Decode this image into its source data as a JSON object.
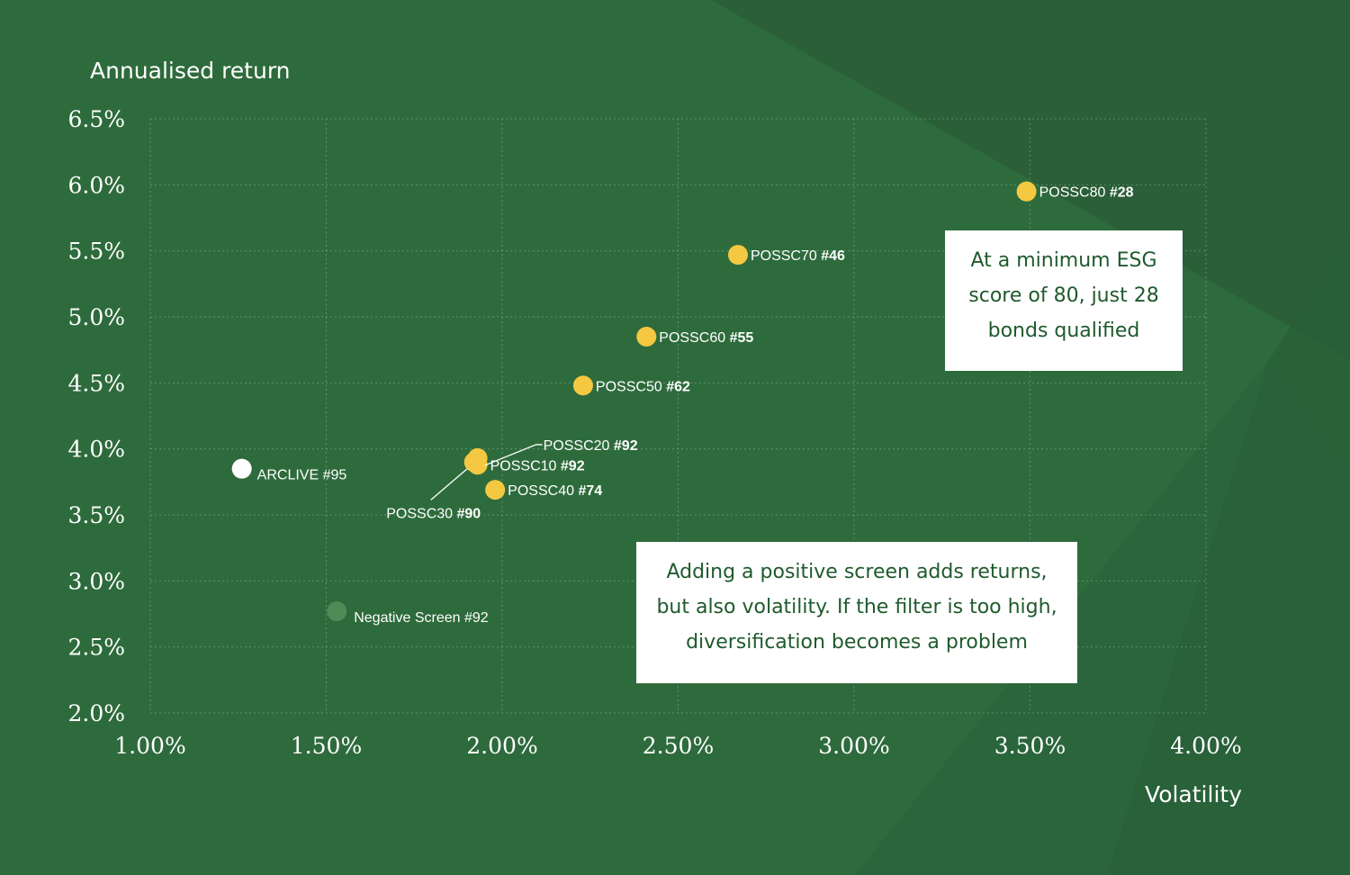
{
  "chart_data": {
    "type": "scatter",
    "title": "",
    "xlabel": "Volatility",
    "ylabel": "Annualised return",
    "xlim": [
      1.0,
      4.0
    ],
    "ylim": [
      2.0,
      6.5
    ],
    "x_ticks": [
      "1.00%",
      "1.50%",
      "2.00%",
      "2.50%",
      "3.00%",
      "3.50%",
      "4.00%"
    ],
    "x_tick_values": [
      1.0,
      1.5,
      2.0,
      2.5,
      3.0,
      3.5,
      4.0
    ],
    "y_ticks": [
      "2.0%",
      "2.5%",
      "3.0%",
      "3.5%",
      "4.0%",
      "4.5%",
      "5.0%",
      "5.5%",
      "6.0%",
      "6.5%"
    ],
    "y_tick_values": [
      2.0,
      2.5,
      3.0,
      3.5,
      4.0,
      4.5,
      5.0,
      5.5,
      6.0,
      6.5
    ],
    "grid": true,
    "points": [
      {
        "name": "ARCLIVE",
        "rank": "#95",
        "x": 1.26,
        "y": 3.85,
        "color": "#ffffff",
        "style": "large-white"
      },
      {
        "name": "Negative Screen",
        "rank": "#92",
        "x": 1.53,
        "y": 2.77,
        "color": "#4f8a57",
        "style": "faded"
      },
      {
        "name": "POSSC10",
        "rank": "#92",
        "x": 1.93,
        "y": 3.88,
        "color": "#f5c842",
        "style": "yellow"
      },
      {
        "name": "POSSC20",
        "rank": "#92",
        "x": 1.93,
        "y": 3.93,
        "color": "#f5c842",
        "style": "yellow-leader-up"
      },
      {
        "name": "POSSC30",
        "rank": "#90",
        "x": 1.92,
        "y": 3.9,
        "color": "#f5c842",
        "style": "yellow-leader-down"
      },
      {
        "name": "POSSC40",
        "rank": "#74",
        "x": 1.98,
        "y": 3.69,
        "color": "#f5c842",
        "style": "yellow"
      },
      {
        "name": "POSSC50",
        "rank": "#62",
        "x": 2.23,
        "y": 4.48,
        "color": "#f5c842",
        "style": "yellow"
      },
      {
        "name": "POSSC60",
        "rank": "#55",
        "x": 2.41,
        "y": 4.85,
        "color": "#f5c842",
        "style": "yellow"
      },
      {
        "name": "POSSC70",
        "rank": "#46",
        "x": 2.67,
        "y": 5.47,
        "color": "#f5c842",
        "style": "yellow"
      },
      {
        "name": "POSSC80",
        "rank": "#28",
        "x": 3.49,
        "y": 5.95,
        "color": "#f5c842",
        "style": "yellow"
      }
    ],
    "annotations": [
      "At a minimum ESG score of 80, just 28 bonds qualified",
      "Adding a positive screen adds returns, but also volatility. If the filter is too high, diversification becomes a problem"
    ]
  },
  "colors": {
    "background": "#2e6b3c",
    "highlight": "#f5c842",
    "callout_text": "#1f5a2c"
  },
  "callouts": {
    "esg80": "At a minimum ESG score of 80, just 28 bonds qualified",
    "positive_screen": "Adding a positive screen adds returns, but also volatility. If the filter is too high, diversification becomes a problem"
  }
}
